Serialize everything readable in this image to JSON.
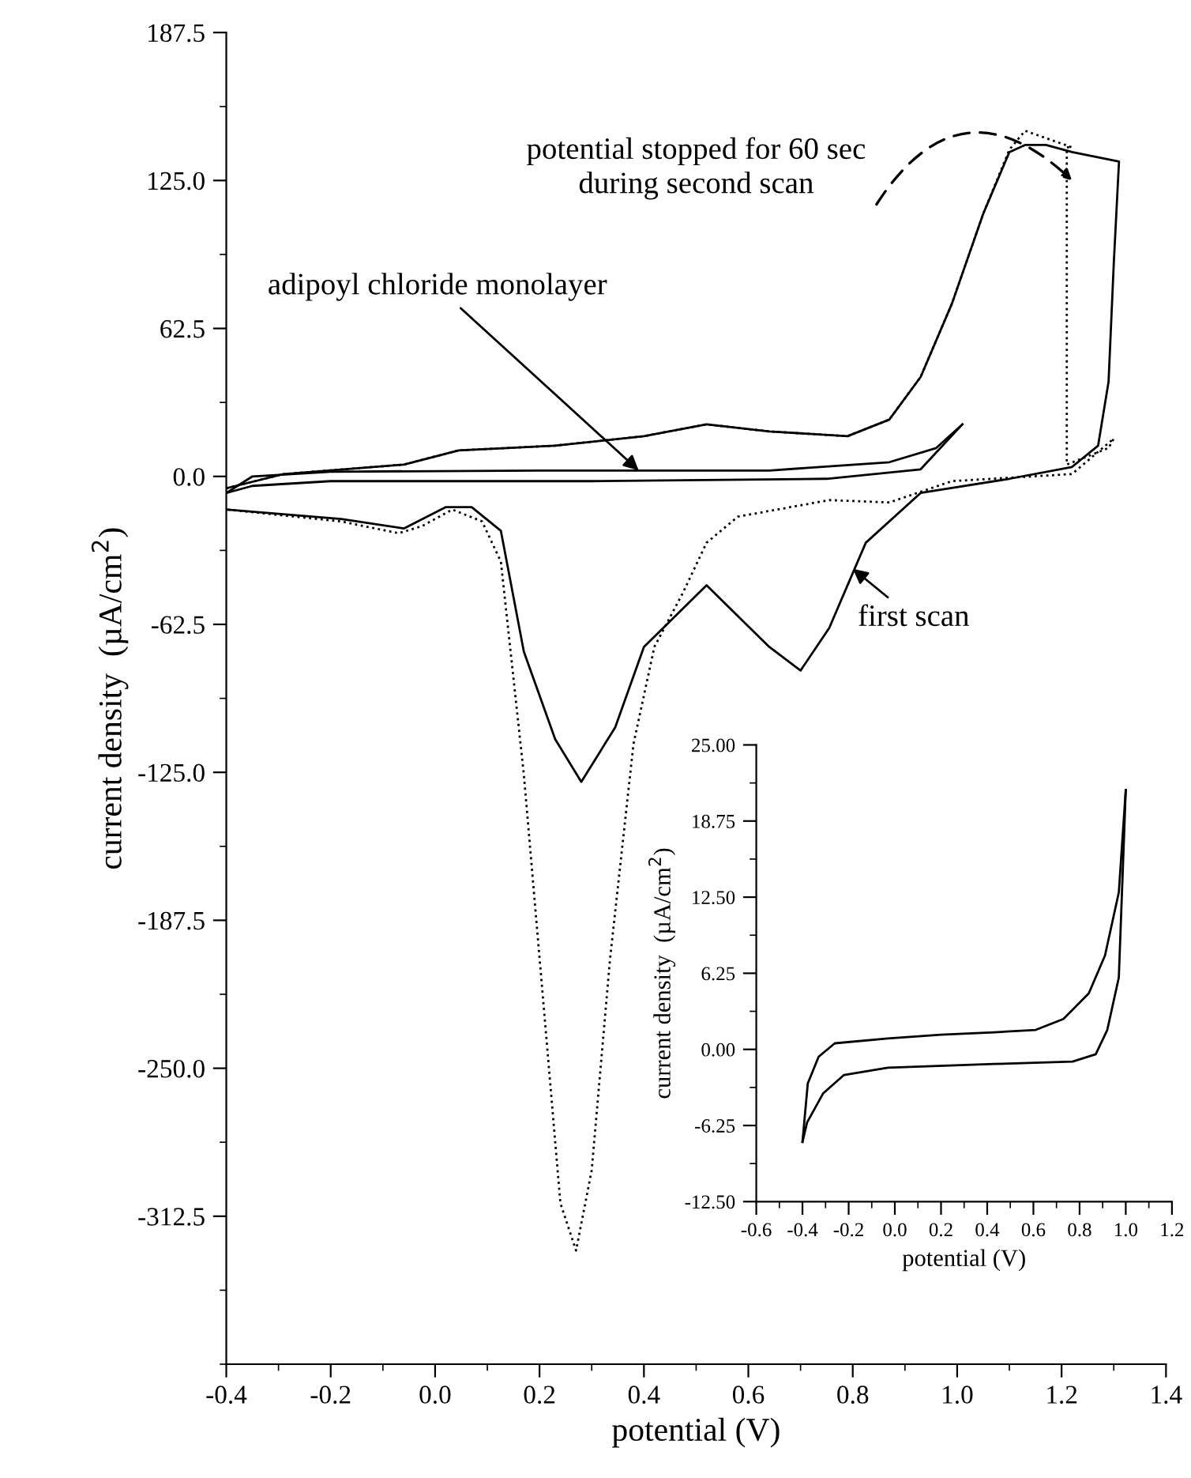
{
  "chart_data": [
    {
      "type": "line",
      "xlabel": "potential (V)",
      "ylabel": "current density  (µA/cm$^{2}$)",
      "xlim": [
        -0.4,
        1.4
      ],
      "ylim": [
        -375,
        187.5
      ],
      "xticks": [
        -0.4,
        {
          "value": -0.3,
          "label": null
        },
        -0.2,
        {
          "value": -0.1,
          "label": null
        },
        {
          "value": 0,
          "label": "0.0"
        },
        {
          "value": 0.1,
          "label": null
        },
        0.2,
        {
          "value": 0.3,
          "label": null
        },
        0.4,
        {
          "value": 0.5,
          "label": null
        },
        0.6,
        {
          "value": 0.7,
          "label": null
        },
        0.8,
        {
          "value": 0.9,
          "label": null
        },
        {
          "value": 1,
          "label": "1.0"
        },
        {
          "value": 1.1,
          "label": null
        },
        1.2,
        {
          "value": 1.3,
          "label": null
        },
        1.4
      ],
      "yticks": [
        {
          "value": -375,
          "label": null
        },
        {
          "value": -343.75,
          "label": null
        },
        -312.5,
        {
          "value": -281.25,
          "label": null
        },
        {
          "value": -250,
          "label": "-250.0"
        },
        {
          "value": -218.75,
          "label": null
        },
        -187.5,
        {
          "value": -156.25,
          "label": null
        },
        {
          "value": -125,
          "label": "-125.0"
        },
        {
          "value": -93.75,
          "label": null
        },
        -62.5,
        {
          "value": -31.25,
          "label": null
        },
        {
          "value": 0,
          "label": "0.0"
        },
        {
          "value": 31.25,
          "label": null
        },
        62.5,
        {
          "value": 93.75,
          "label": null
        },
        {
          "value": 125,
          "label": "125.0"
        },
        {
          "value": 156.25,
          "label": null
        },
        187.5
      ],
      "grid": false,
      "legend": false,
      "series": [
        {
          "color": "#000000",
          "line_style": "solid",
          "x": [
            -0.4,
            -0.29,
            -0.06,
            0.045,
            0.23,
            0.4,
            0.52,
            0.64,
            0.79,
            0.87,
            0.93,
            0.99,
            1.05,
            1.1,
            1.13,
            1.17,
            1.22,
            1.31,
            1.3,
            1.29,
            1.27,
            1.22,
            1.1,
            0.93,
            0.825,
            0.755,
            0.7,
            0.64,
            0.52,
            0.4,
            0.345,
            0.28,
            0.23,
            0.17,
            0.126,
            0.07,
            0.02,
            -0.06,
            -0.18,
            -0.4
          ],
          "values": [
            -5,
            1,
            5,
            11,
            13,
            17,
            22,
            19,
            17,
            24,
            42,
            73,
            111,
            137,
            140,
            140,
            137,
            133,
            90,
            40,
            13,
            4,
            -1,
            -7,
            -28,
            -64,
            -82,
            -72,
            -46,
            -72,
            -106,
            -129,
            -111,
            -74,
            -23,
            -13,
            -13,
            -22,
            -18,
            -14
          ]
        },
        {
          "color": "#000000",
          "line_style": "dotted",
          "x": [
            -0.4,
            -0.29,
            -0.06,
            0.045,
            0.23,
            0.4,
            0.52,
            0.64,
            0.79,
            0.87,
            0.93,
            0.99,
            1.05,
            1.1,
            1.13,
            1.22,
            1.21,
            1.21,
            1.29,
            1.3,
            1.22,
            0.99,
            0.87,
            0.755,
            0.58,
            0.52,
            0.475,
            0.42,
            0.38,
            0.335,
            0.3,
            0.27,
            0.24,
            0.21,
            0.17,
            0.126,
            0.09,
            0.033,
            -0.025,
            -0.07,
            -0.18,
            -0.4
          ],
          "values": [
            -5,
            1,
            5,
            11,
            13,
            17,
            22,
            19,
            17,
            24,
            42,
            73,
            111,
            138,
            146,
            139,
            139,
            5,
            12,
            16,
            1,
            -2,
            -11,
            -10,
            -17,
            -28,
            -49,
            -72,
            -113,
            -204,
            -293,
            -327,
            -307,
            -229,
            -126,
            -36,
            -19,
            -14,
            -21,
            -24,
            -19,
            -14
          ]
        },
        {
          "color": "#000000",
          "line_style": "solid",
          "x": [
            -0.4,
            -0.35,
            -0.2,
            0.2,
            0.64,
            0.87,
            0.96,
            1.01
          ],
          "values": [
            -7,
            0,
            2,
            2.5,
            2.5,
            6,
            12,
            22
          ]
        },
        {
          "color": "#000000",
          "line_style": "solid",
          "x": [
            -0.4,
            -0.35,
            -0.2,
            0.3,
            0.75,
            0.93,
            1.01
          ],
          "values": [
            -7,
            -4,
            -2,
            -2,
            -1,
            3,
            22
          ]
        }
      ],
      "annotations": [
        {
          "text": "adipoyl chloride monolayer",
          "x": 0.39,
          "y": 2.5
        },
        {
          "text": "first scan",
          "x": 0.8,
          "y": -39
        },
        {
          "text": "potential stopped for 60 sec\nduring second scan",
          "x": 1.22,
          "y": 125
        }
      ]
    },
    {
      "type": "line",
      "xlabel": "potential (V)",
      "ylabel": "current density  (µA/cm$^{2}$)",
      "xlim": [
        -0.6,
        1.2
      ],
      "ylim": [
        -12.5,
        25
      ],
      "xticks": [
        -0.6,
        {
          "value": -0.5,
          "label": null
        },
        -0.4,
        {
          "value": -0.3,
          "label": null
        },
        -0.2,
        {
          "value": -0.1,
          "label": null
        },
        {
          "value": 0,
          "label": "0.0"
        },
        {
          "value": 0.1,
          "label": null
        },
        0.2,
        {
          "value": 0.3,
          "label": null
        },
        0.4,
        {
          "value": 0.5,
          "label": null
        },
        0.6,
        {
          "value": 0.7,
          "label": null
        },
        0.8,
        {
          "value": 0.9,
          "label": null
        },
        {
          "value": 1,
          "label": "1.0"
        },
        {
          "value": 1.1,
          "label": null
        },
        1.2
      ],
      "yticks": [
        {
          "value": -12.5,
          "label": "-12.50"
        },
        {
          "value": -9.375,
          "label": null
        },
        {
          "value": -6.25,
          "label": "-6.25"
        },
        {
          "value": -3.125,
          "label": null
        },
        {
          "value": 0,
          "label": "0.00"
        },
        {
          "value": 3.125,
          "label": null
        },
        {
          "value": 6.25,
          "label": "6.25"
        },
        {
          "value": 9.375,
          "label": null
        },
        {
          "value": 12.5,
          "label": "12.50"
        },
        {
          "value": 15.625,
          "label": null
        },
        {
          "value": 18.75,
          "label": "18.75"
        },
        {
          "value": 21.875,
          "label": null
        },
        {
          "value": 25,
          "label": "25.00"
        }
      ],
      "grid": false,
      "legend": false,
      "series": [
        {
          "color": "#000000",
          "line_style": "solid",
          "x": [
            -0.4,
            -0.377,
            -0.33,
            -0.26,
            -0.03,
            0.2,
            0.43,
            0.61,
            0.73,
            0.84,
            0.91,
            0.97,
            1.0
          ],
          "values": [
            -7.6,
            -2.8,
            -0.6,
            0.5,
            0.9,
            1.2,
            1.4,
            1.6,
            2.5,
            4.6,
            7.7,
            12.9,
            21.3
          ]
        },
        {
          "color": "#000000",
          "line_style": "solid",
          "x": [
            -0.4,
            -0.38,
            -0.31,
            -0.22,
            -0.03,
            0.43,
            0.77,
            0.87,
            0.92,
            0.97,
            1.0
          ],
          "values": [
            -7.6,
            -6.0,
            -3.6,
            -2.1,
            -1.5,
            -1.2,
            -1.0,
            -0.4,
            1.6,
            5.9,
            21.3
          ]
        }
      ]
    }
  ]
}
